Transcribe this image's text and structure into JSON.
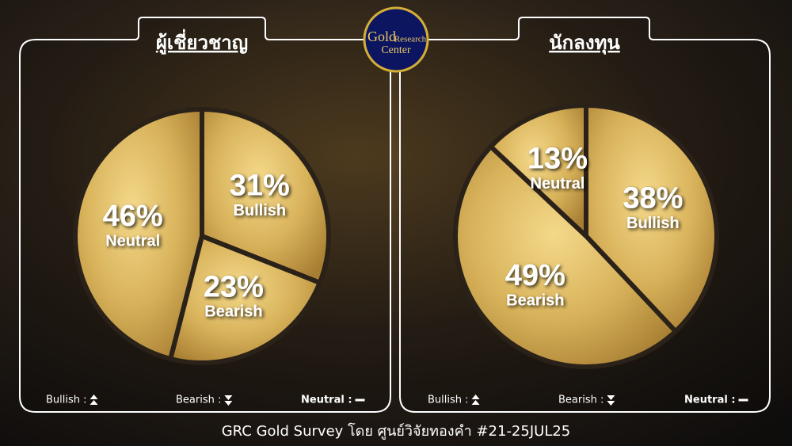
{
  "chart_data": [
    {
      "type": "pie",
      "title": "ผู้เชี่ยวชาญ",
      "categories": [
        "Bullish",
        "Bearish",
        "Neutral"
      ],
      "values": [
        31,
        23,
        46
      ],
      "value_labels": [
        "31%",
        "23%",
        "46%"
      ],
      "legend_labels": [
        "Bullish :",
        "Bearish :",
        "Neutral :"
      ]
    },
    {
      "type": "pie",
      "title": "นักลงทุน",
      "categories": [
        "Bullish",
        "Bearish",
        "Neutral"
      ],
      "values": [
        38,
        49,
        13
      ],
      "value_labels": [
        "38%",
        "49%",
        "13%"
      ],
      "legend_labels": [
        "Bullish :",
        "Bearish :",
        "Neutral :"
      ]
    }
  ],
  "logo": {
    "line1": "Gold",
    "line2": "Research",
    "line3": "Center"
  },
  "footer": "GRC Gold Survey โดย ศูนย์วิจัยทองคำ #21-25JUL25"
}
